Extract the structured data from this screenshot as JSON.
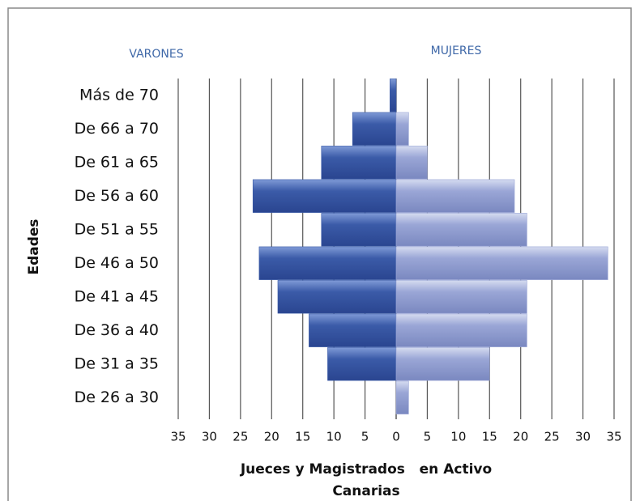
{
  "chart_data": {
    "type": "pyramid",
    "categories": [
      "Más de 70",
      "De 66 a 70",
      "De 61 a 65",
      "De 56 a 60",
      "De 51 a 55",
      "De 46 a 50",
      "De 41 a 45",
      "De 36 a 40",
      "De 31 a 35",
      "De 26 a 30"
    ],
    "series": [
      {
        "name": "VARONES",
        "color": "#3b5ba8",
        "values": [
          -1,
          -7,
          -12,
          -23,
          -12,
          -22,
          -19,
          -14,
          -11,
          0
        ]
      },
      {
        "name": "MUJERES",
        "color": "#9aa6d6",
        "values": [
          0,
          2,
          5,
          19,
          21,
          34,
          21,
          21,
          15,
          2
        ]
      }
    ],
    "xlim": [
      -35,
      35
    ],
    "xticks": [
      {
        "value": -35,
        "label": "35"
      },
      {
        "value": -30,
        "label": "30"
      },
      {
        "value": -25,
        "label": "25"
      },
      {
        "value": -20,
        "label": "20"
      },
      {
        "value": -15,
        "label": "15"
      },
      {
        "value": -10,
        "label": "10"
      },
      {
        "value": -5,
        "label": "5"
      },
      0,
      5,
      10,
      15,
      20,
      25,
      30,
      35
    ],
    "grid": true,
    "ylabel": "Edades",
    "xlabel_lines": [
      "Jueces y Magistrados   en Activo",
      "Canarias"
    ]
  }
}
